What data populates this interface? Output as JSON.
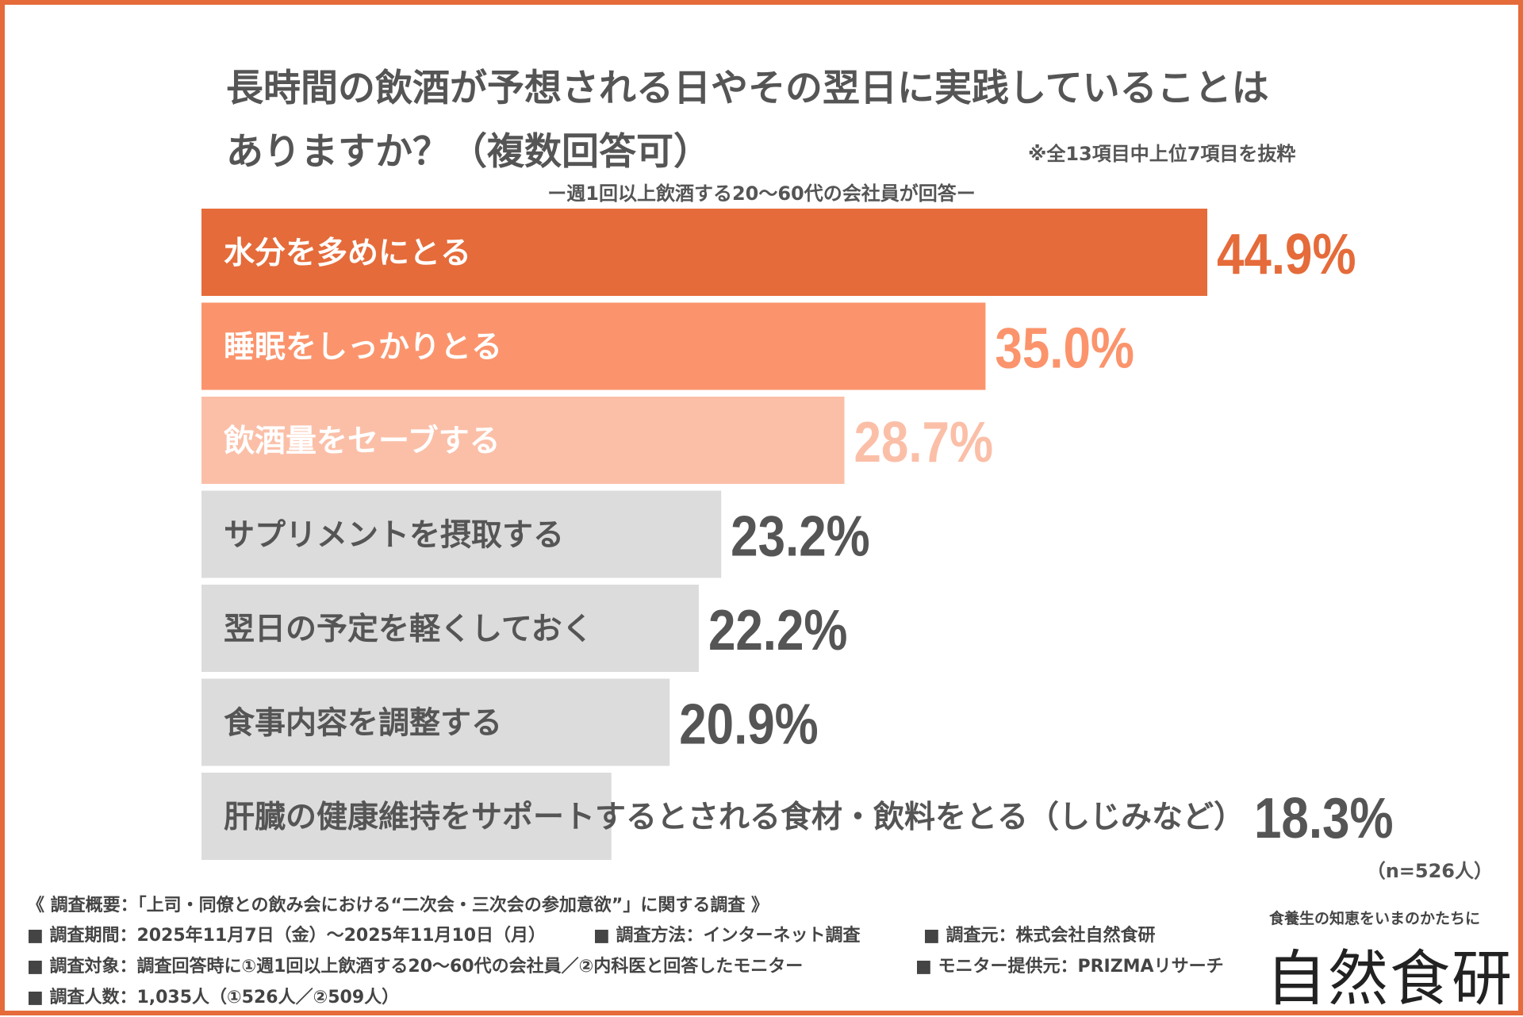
{
  "title_line1": "長時間の飲酒が予想される日やその翌日に実践していることは",
  "title_line2": "ありますか？（複数回答可）",
  "note": "※全13項目中上位7項目を抜粋",
  "subtitle": "ー週1回以上飲酒する20〜60代の会社員が回答ー",
  "n_note": "（n=526人）",
  "colors": {
    "frame": "#e56b3a",
    "bar_1": "#e56b3a",
    "bar_2": "#fb946c",
    "bar_3": "#fbbfa8",
    "bar_gray": "#dcdcdc",
    "value_gray": "#555555"
  },
  "chart_data": {
    "type": "bar",
    "orientation": "horizontal",
    "categories": [
      "水分を多めにとる",
      "睡眠をしっかりとる",
      "飲酒量をセーブする",
      "サプリメントを摂取する",
      "翌日の予定を軽くしておく",
      "食事内容を調整する",
      "肝臓の健康維持をサポートするとされる食材・飲料をとる（しじみなど）"
    ],
    "values": [
      44.9,
      35.0,
      28.7,
      23.2,
      22.2,
      20.9,
      18.3
    ],
    "value_labels": [
      "44.9%",
      "35.0%",
      "28.7%",
      "23.2%",
      "22.2%",
      "20.9%",
      "18.3%"
    ],
    "unit": "%",
    "xlim": [
      0,
      100
    ],
    "grid": false,
    "legend": "none"
  },
  "footer": {
    "overview": "《 調査概要：「上司・同僚との飲み会における“二次会・三次会の参加意欲”」に関する調査 》",
    "period": "■ 調査期間：2025年11月7日（金）〜2025年11月10日（月）",
    "method": "■ 調査方法：インターネット調査",
    "source": "■ 調査元：株式会社自然食研",
    "target": "■ 調査対象：調査回答時に①週1回以上飲酒する20〜60代の会社員／②内科医と回答したモニター",
    "monitor": "■ モニター提供元：PRIZMAリサーチ",
    "count": "■ 調査人数：1,035人（①526人／②509人）"
  },
  "logo": {
    "tagline": "食養生の知恵をいまのかたちに",
    "name": "自然食研"
  }
}
